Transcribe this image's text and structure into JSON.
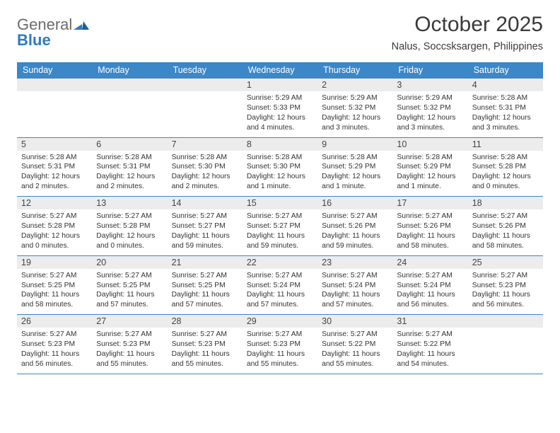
{
  "logo": {
    "line1": "General",
    "line2": "Blue"
  },
  "title": "October 2025",
  "subtitle": "Nalus, Soccsksargen, Philippines",
  "colors": {
    "header_bg": "#3b87c8",
    "header_fg": "#ffffff",
    "daynum_bg": "#ececec",
    "rule": "#3b87c8",
    "logo_gray": "#6b6b6b",
    "logo_blue": "#2f7bbf"
  },
  "days_of_week": [
    "Sunday",
    "Monday",
    "Tuesday",
    "Wednesday",
    "Thursday",
    "Friday",
    "Saturday"
  ],
  "weeks": [
    [
      {
        "n": "",
        "sunrise": "",
        "sunset": "",
        "daylight": ""
      },
      {
        "n": "",
        "sunrise": "",
        "sunset": "",
        "daylight": ""
      },
      {
        "n": "",
        "sunrise": "",
        "sunset": "",
        "daylight": ""
      },
      {
        "n": "1",
        "sunrise": "Sunrise: 5:29 AM",
        "sunset": "Sunset: 5:33 PM",
        "daylight": "Daylight: 12 hours and 4 minutes."
      },
      {
        "n": "2",
        "sunrise": "Sunrise: 5:29 AM",
        "sunset": "Sunset: 5:32 PM",
        "daylight": "Daylight: 12 hours and 3 minutes."
      },
      {
        "n": "3",
        "sunrise": "Sunrise: 5:29 AM",
        "sunset": "Sunset: 5:32 PM",
        "daylight": "Daylight: 12 hours and 3 minutes."
      },
      {
        "n": "4",
        "sunrise": "Sunrise: 5:28 AM",
        "sunset": "Sunset: 5:31 PM",
        "daylight": "Daylight: 12 hours and 3 minutes."
      }
    ],
    [
      {
        "n": "5",
        "sunrise": "Sunrise: 5:28 AM",
        "sunset": "Sunset: 5:31 PM",
        "daylight": "Daylight: 12 hours and 2 minutes."
      },
      {
        "n": "6",
        "sunrise": "Sunrise: 5:28 AM",
        "sunset": "Sunset: 5:31 PM",
        "daylight": "Daylight: 12 hours and 2 minutes."
      },
      {
        "n": "7",
        "sunrise": "Sunrise: 5:28 AM",
        "sunset": "Sunset: 5:30 PM",
        "daylight": "Daylight: 12 hours and 2 minutes."
      },
      {
        "n": "8",
        "sunrise": "Sunrise: 5:28 AM",
        "sunset": "Sunset: 5:30 PM",
        "daylight": "Daylight: 12 hours and 1 minute."
      },
      {
        "n": "9",
        "sunrise": "Sunrise: 5:28 AM",
        "sunset": "Sunset: 5:29 PM",
        "daylight": "Daylight: 12 hours and 1 minute."
      },
      {
        "n": "10",
        "sunrise": "Sunrise: 5:28 AM",
        "sunset": "Sunset: 5:29 PM",
        "daylight": "Daylight: 12 hours and 1 minute."
      },
      {
        "n": "11",
        "sunrise": "Sunrise: 5:28 AM",
        "sunset": "Sunset: 5:28 PM",
        "daylight": "Daylight: 12 hours and 0 minutes."
      }
    ],
    [
      {
        "n": "12",
        "sunrise": "Sunrise: 5:27 AM",
        "sunset": "Sunset: 5:28 PM",
        "daylight": "Daylight: 12 hours and 0 minutes."
      },
      {
        "n": "13",
        "sunrise": "Sunrise: 5:27 AM",
        "sunset": "Sunset: 5:28 PM",
        "daylight": "Daylight: 12 hours and 0 minutes."
      },
      {
        "n": "14",
        "sunrise": "Sunrise: 5:27 AM",
        "sunset": "Sunset: 5:27 PM",
        "daylight": "Daylight: 11 hours and 59 minutes."
      },
      {
        "n": "15",
        "sunrise": "Sunrise: 5:27 AM",
        "sunset": "Sunset: 5:27 PM",
        "daylight": "Daylight: 11 hours and 59 minutes."
      },
      {
        "n": "16",
        "sunrise": "Sunrise: 5:27 AM",
        "sunset": "Sunset: 5:26 PM",
        "daylight": "Daylight: 11 hours and 59 minutes."
      },
      {
        "n": "17",
        "sunrise": "Sunrise: 5:27 AM",
        "sunset": "Sunset: 5:26 PM",
        "daylight": "Daylight: 11 hours and 58 minutes."
      },
      {
        "n": "18",
        "sunrise": "Sunrise: 5:27 AM",
        "sunset": "Sunset: 5:26 PM",
        "daylight": "Daylight: 11 hours and 58 minutes."
      }
    ],
    [
      {
        "n": "19",
        "sunrise": "Sunrise: 5:27 AM",
        "sunset": "Sunset: 5:25 PM",
        "daylight": "Daylight: 11 hours and 58 minutes."
      },
      {
        "n": "20",
        "sunrise": "Sunrise: 5:27 AM",
        "sunset": "Sunset: 5:25 PM",
        "daylight": "Daylight: 11 hours and 57 minutes."
      },
      {
        "n": "21",
        "sunrise": "Sunrise: 5:27 AM",
        "sunset": "Sunset: 5:25 PM",
        "daylight": "Daylight: 11 hours and 57 minutes."
      },
      {
        "n": "22",
        "sunrise": "Sunrise: 5:27 AM",
        "sunset": "Sunset: 5:24 PM",
        "daylight": "Daylight: 11 hours and 57 minutes."
      },
      {
        "n": "23",
        "sunrise": "Sunrise: 5:27 AM",
        "sunset": "Sunset: 5:24 PM",
        "daylight": "Daylight: 11 hours and 57 minutes."
      },
      {
        "n": "24",
        "sunrise": "Sunrise: 5:27 AM",
        "sunset": "Sunset: 5:24 PM",
        "daylight": "Daylight: 11 hours and 56 minutes."
      },
      {
        "n": "25",
        "sunrise": "Sunrise: 5:27 AM",
        "sunset": "Sunset: 5:23 PM",
        "daylight": "Daylight: 11 hours and 56 minutes."
      }
    ],
    [
      {
        "n": "26",
        "sunrise": "Sunrise: 5:27 AM",
        "sunset": "Sunset: 5:23 PM",
        "daylight": "Daylight: 11 hours and 56 minutes."
      },
      {
        "n": "27",
        "sunrise": "Sunrise: 5:27 AM",
        "sunset": "Sunset: 5:23 PM",
        "daylight": "Daylight: 11 hours and 55 minutes."
      },
      {
        "n": "28",
        "sunrise": "Sunrise: 5:27 AM",
        "sunset": "Sunset: 5:23 PM",
        "daylight": "Daylight: 11 hours and 55 minutes."
      },
      {
        "n": "29",
        "sunrise": "Sunrise: 5:27 AM",
        "sunset": "Sunset: 5:23 PM",
        "daylight": "Daylight: 11 hours and 55 minutes."
      },
      {
        "n": "30",
        "sunrise": "Sunrise: 5:27 AM",
        "sunset": "Sunset: 5:22 PM",
        "daylight": "Daylight: 11 hours and 55 minutes."
      },
      {
        "n": "31",
        "sunrise": "Sunrise: 5:27 AM",
        "sunset": "Sunset: 5:22 PM",
        "daylight": "Daylight: 11 hours and 54 minutes."
      },
      {
        "n": "",
        "sunrise": "",
        "sunset": "",
        "daylight": ""
      }
    ]
  ]
}
